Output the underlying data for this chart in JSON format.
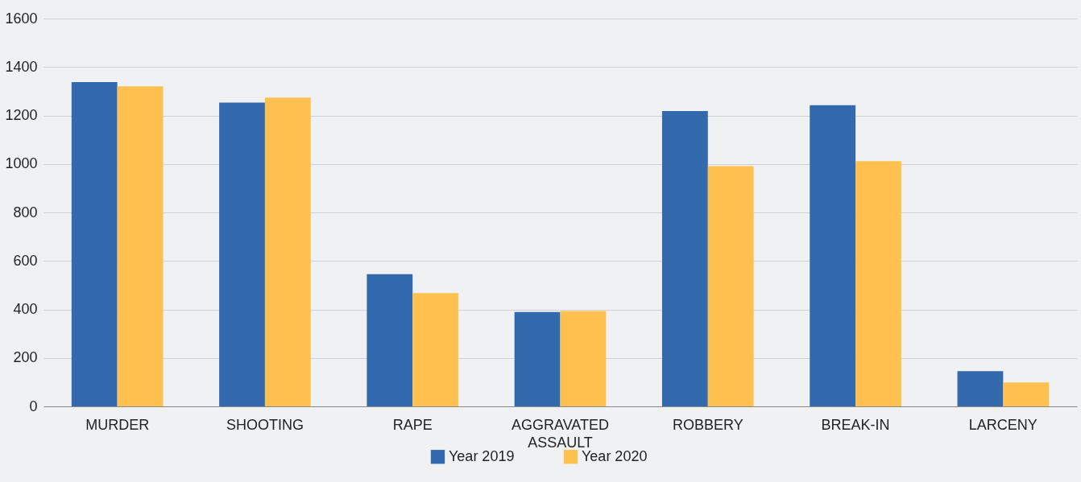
{
  "chart_data": {
    "type": "bar",
    "categories": [
      "MURDER",
      "SHOOTING",
      "RAPE",
      "AGGRAVATED ASSAULT",
      "ROBBERY",
      "BREAK-IN",
      "LARCENY"
    ],
    "series": [
      {
        "name": "Year 2019",
        "color": "#3369ad",
        "values": [
          1338,
          1253,
          545,
          389,
          1218,
          1242,
          145
        ]
      },
      {
        "name": "Year 2020",
        "color": "#fec150",
        "values": [
          1320,
          1274,
          467,
          393,
          991,
          1012,
          99
        ]
      }
    ],
    "ylim": [
      0,
      1600
    ],
    "yticks": [
      0,
      200,
      400,
      600,
      800,
      1000,
      1200,
      1400,
      1600
    ],
    "grid": "y",
    "legend": "bottom"
  }
}
